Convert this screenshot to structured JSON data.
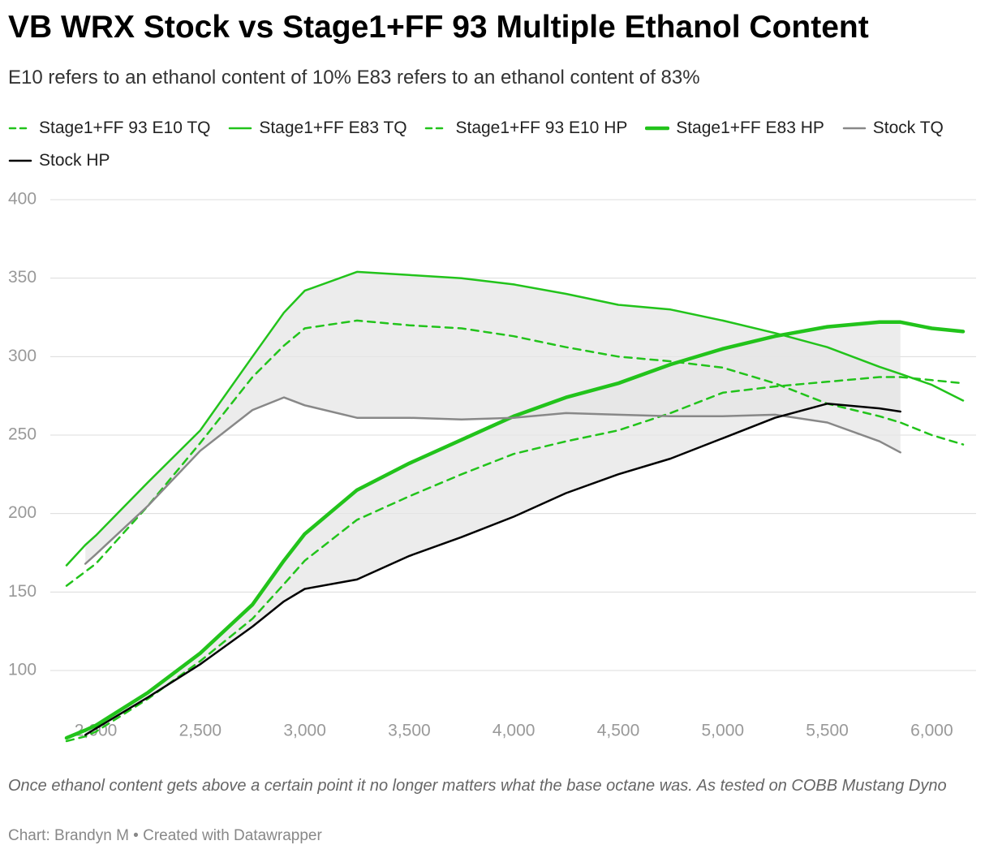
{
  "chart_data": {
    "type": "line",
    "title": "VB WRX Stock vs Stage1+FF 93 Multiple Ethanol Content",
    "subtitle": "E10 refers to an ethanol content of 10% E83 refers to an ethanol content of 83%",
    "notes": "Once ethanol content gets above a certain point it no longer matters what the base octane was. As tested on COBB Mustang Dyno",
    "credit": "Chart: Brandyn M • Created with Datawrapper",
    "x": [
      1860,
      1950,
      2000,
      2250,
      2500,
      2750,
      2900,
      3000,
      3250,
      3500,
      3750,
      4000,
      4250,
      4500,
      4750,
      5000,
      5250,
      5500,
      5750,
      5850,
      6000,
      6150
    ],
    "series": [
      {
        "name": "Stage1+FF 93 E10 TQ",
        "color": "#22c31b",
        "dashed": true,
        "line_width": 2.5,
        "values": [
          154,
          163,
          168,
          205,
          245,
          287,
          307,
          318,
          323,
          320,
          318,
          313,
          306,
          300,
          297,
          293,
          283,
          270,
          262,
          258,
          250,
          244
        ]
      },
      {
        "name": "Stage1+FF E83 TQ",
        "color": "#22c31b",
        "dashed": false,
        "line_width": 2.5,
        "values": [
          167,
          180,
          186,
          220,
          253,
          300,
          328,
          342,
          354,
          352,
          350,
          346,
          340,
          333,
          330,
          323,
          315,
          306,
          293.5,
          289,
          282,
          272
        ]
      },
      {
        "name": "Stage1+FF 93 E10 HP",
        "color": "#22c31b",
        "dashed": true,
        "line_width": 2.5,
        "values": [
          55,
          58,
          61,
          82,
          106,
          133,
          155,
          170,
          196,
          211,
          225,
          238,
          246,
          253,
          264,
          277,
          281,
          284,
          287,
          287,
          285,
          283
        ]
      },
      {
        "name": "Stage1+FF E83 HP",
        "color": "#22c31b",
        "dashed": false,
        "line_width": 4.5,
        "values": [
          57,
          62,
          65,
          86,
          111,
          142,
          170,
          187,
          215,
          232,
          247,
          262,
          274,
          283,
          295,
          305,
          313,
          319,
          322,
          322,
          318,
          316
        ]
      },
      {
        "name": "Stock TQ",
        "color": "#888888",
        "dashed": false,
        "line_width": 2.5,
        "values": [
          null,
          168,
          174,
          205,
          240,
          266,
          274,
          269,
          261,
          261,
          260,
          261,
          264,
          263,
          262,
          262,
          263,
          258,
          246,
          239,
          null,
          null
        ]
      },
      {
        "name": "Stock HP",
        "color": "#000000",
        "dashed": false,
        "line_width": 2.5,
        "values": [
          null,
          59,
          63,
          83,
          104,
          128,
          144,
          152,
          158,
          173,
          185,
          198,
          213,
          225,
          235,
          248,
          261,
          270,
          267,
          265,
          null,
          null
        ]
      }
    ],
    "xlim": [
      1860,
      6150
    ],
    "ylim": [
      55,
      400
    ],
    "xticks": [
      {
        "value": 2000,
        "label": "2,000"
      },
      {
        "value": 2500,
        "label": "2,500"
      },
      {
        "value": 3000,
        "label": "3,000"
      },
      {
        "value": 3500,
        "label": "3,500"
      },
      {
        "value": 4000,
        "label": "4,000"
      },
      {
        "value": 4500,
        "label": "4,500"
      },
      {
        "value": 5000,
        "label": "5,000"
      },
      {
        "value": 5500,
        "label": "5,500"
      },
      {
        "value": 6000,
        "label": "6,000"
      }
    ],
    "yticks": [
      100,
      150,
      200,
      250,
      300,
      350,
      400
    ],
    "grid": true,
    "shade_pairs": [
      [
        1,
        4
      ],
      [
        3,
        5
      ]
    ]
  }
}
